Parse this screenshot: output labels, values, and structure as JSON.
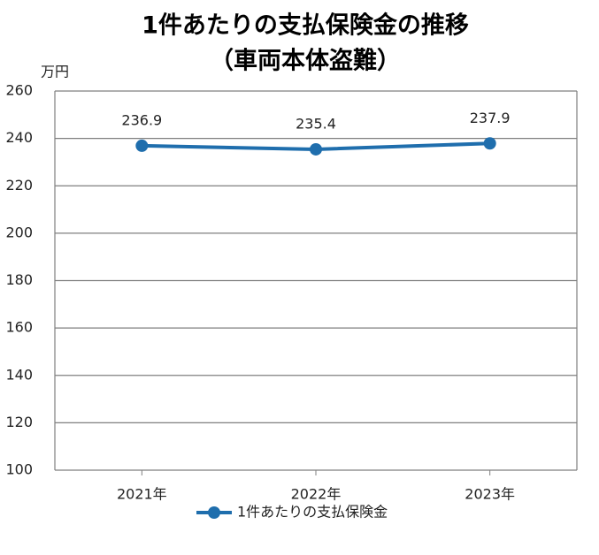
{
  "chart_data": {
    "type": "line",
    "title": "1件あたりの支払保険金の推移",
    "subtitle": "（車両本体盗難）",
    "y_unit": "万円",
    "categories": [
      "2021年",
      "2022年",
      "2023年"
    ],
    "series": [
      {
        "name": "1件あたりの支払保険金",
        "color": "#1f6ead",
        "values": [
          236.9,
          235.4,
          237.9
        ]
      }
    ],
    "ylim": [
      100,
      260
    ],
    "yticks": [
      100,
      120,
      140,
      160,
      180,
      200,
      220,
      240,
      260
    ],
    "grid": true,
    "legend": "bottom"
  }
}
